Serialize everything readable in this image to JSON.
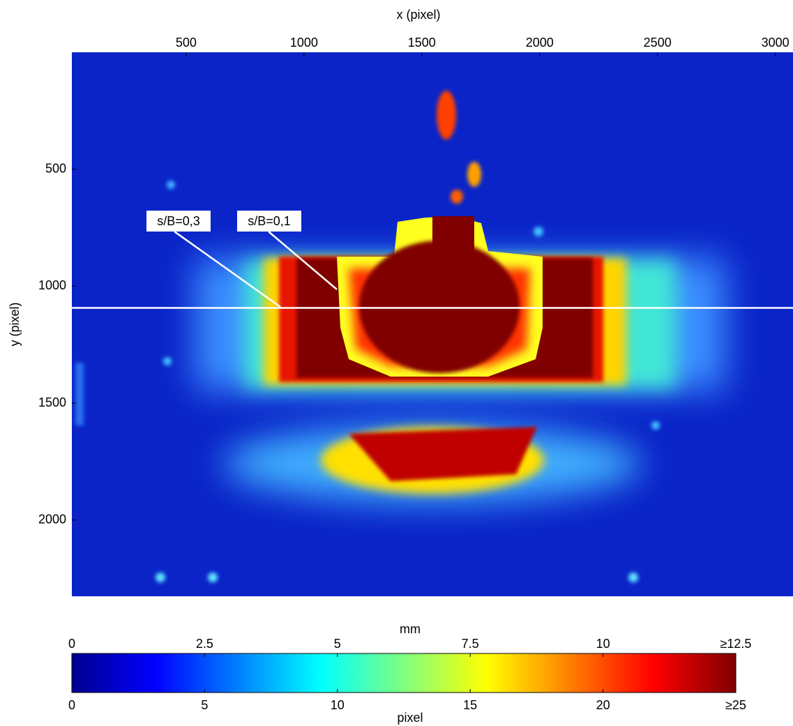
{
  "chart_data": {
    "type": "heatmap",
    "xlabel": "x (pixel)",
    "ylabel": "y (pixel)",
    "xlim": [
      15,
      3075
    ],
    "xticks": [
      500,
      1000,
      1500,
      2000,
      2500,
      3000
    ],
    "ylim": [
      0,
      2326
    ],
    "yticks": [
      500,
      1000,
      1500,
      2000
    ],
    "hline": 1093,
    "annotations": [
      "s/B=0,3",
      "s/B=0,1"
    ],
    "colorbar": {
      "top_label": "mm",
      "top_lim": [
        0,
        12.5
      ],
      "top_ticks": [
        0,
        2.5,
        5,
        7.5,
        10,
        {
          "value": 12.5,
          "label": "≥12.5"
        }
      ],
      "bottom_label": "pixel",
      "bottom_lim": [
        0,
        25
      ],
      "bottom_ticks": [
        0,
        5,
        10,
        15,
        20,
        {
          "value": 25,
          "label": "≥25"
        }
      ],
      "colormap": "jet"
    }
  }
}
